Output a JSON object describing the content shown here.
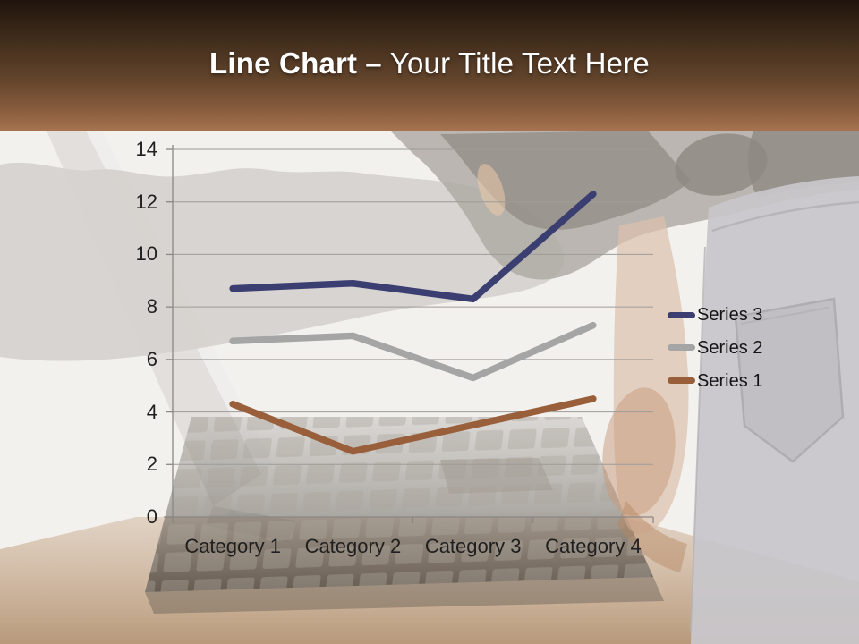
{
  "slide": {
    "title": {
      "bold_text": "Line Chart",
      "separator": "–",
      "regular_text": "Your Title Text Here"
    }
  },
  "theme": {
    "header_gradient_top": "#1f140d",
    "header_gradient_bottom": "#a6734f",
    "slide_background": "#f3f1ee",
    "title_color": "#ffffff",
    "axis_color": "#8a8784",
    "gridline_color": "#9e9b98",
    "label_color": "#1f1f1f"
  },
  "chart_data": {
    "type": "line",
    "subtype": "stacked",
    "title": "",
    "xlabel": "",
    "ylabel": "",
    "categories": [
      "Category 1",
      "Category 2",
      "Category 3",
      "Category 4"
    ],
    "series": [
      {
        "name": "Series 1",
        "color": "#985f3a",
        "values": [
          4.3,
          2.5,
          3.5,
          4.5
        ],
        "plotted_cumulative": [
          4.3,
          2.5,
          3.5,
          4.5
        ]
      },
      {
        "name": "Series 2",
        "color": "#a5a5a5",
        "values": [
          2.4,
          4.4,
          1.8,
          2.8
        ],
        "plotted_cumulative": [
          6.7,
          6.9,
          5.3,
          7.3
        ]
      },
      {
        "name": "Series 3",
        "color": "#3a3e70",
        "values": [
          2.0,
          2.0,
          3.0,
          5.0
        ],
        "plotted_cumulative": [
          8.7,
          8.9,
          8.3,
          12.3
        ]
      }
    ],
    "ylim": [
      0,
      14
    ],
    "yticks": [
      0,
      2,
      4,
      6,
      8,
      10,
      12,
      14
    ],
    "grid": true,
    "legend_position": "right",
    "legend_order": [
      "Series 3",
      "Series 2",
      "Series 1"
    ],
    "line_width": 7.5
  }
}
